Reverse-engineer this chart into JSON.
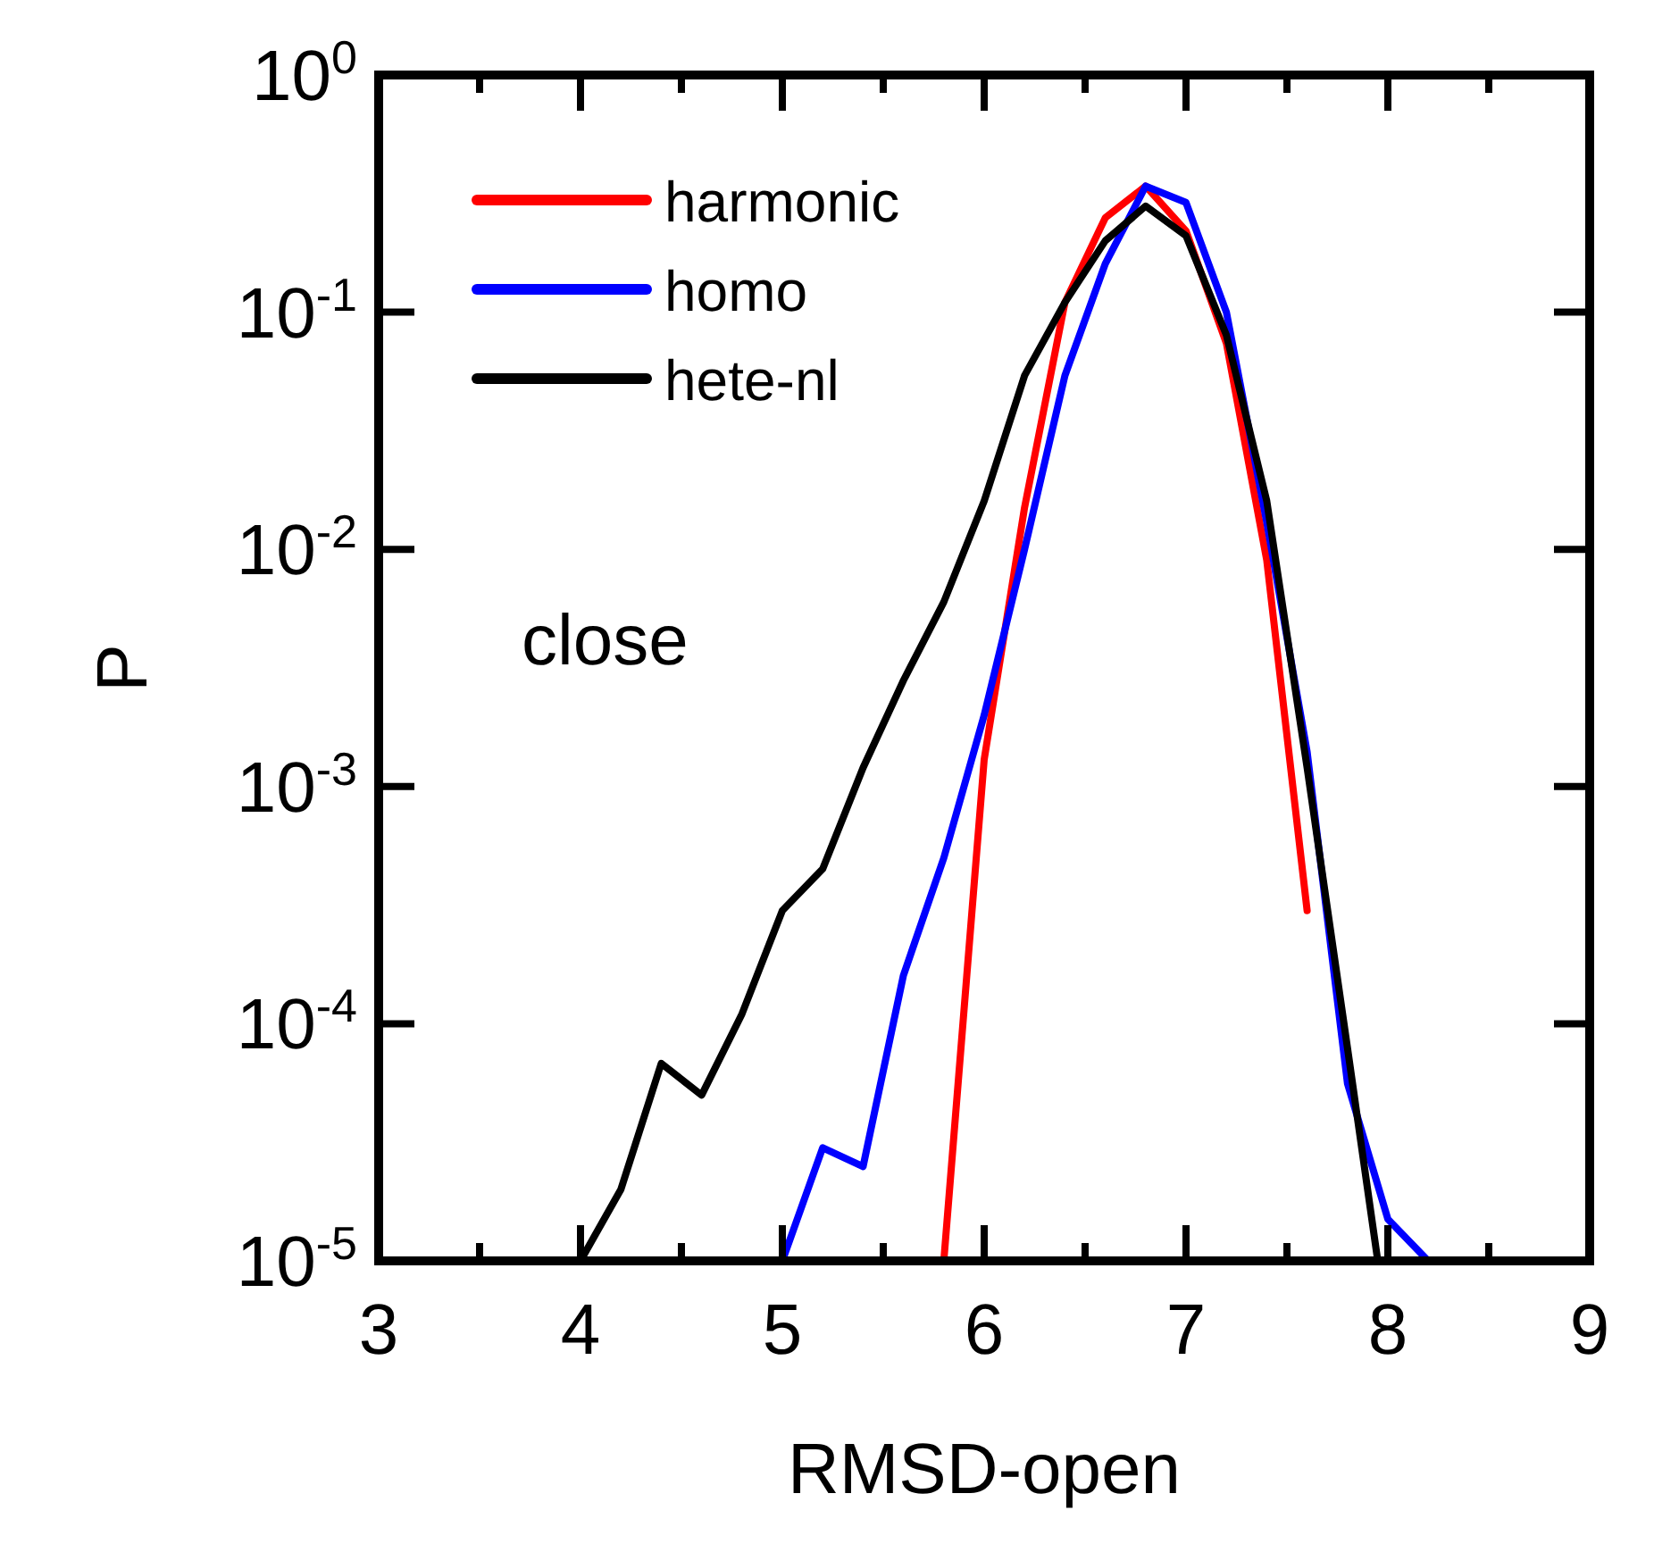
{
  "chart_data": {
    "type": "line",
    "xlabel": "RMSD-open",
    "ylabel": "P",
    "log": "y",
    "xlim": [
      3,
      9
    ],
    "xticks": [
      3,
      {
        "value": 3.5,
        "label": null
      },
      4,
      {
        "value": 4.5,
        "label": null
      },
      5,
      {
        "value": 5.5,
        "label": null
      },
      6,
      {
        "value": 6.5,
        "label": null
      },
      7,
      {
        "value": 7.5,
        "label": null
      },
      8,
      {
        "value": 8.5,
        "label": null
      },
      9
    ],
    "ylim": [
      1e-05,
      1
    ],
    "yticks": [
      {
        "value": 1,
        "label": "10$^{0}$"
      },
      {
        "value": 0.1,
        "label": "10$^{-1}$"
      },
      {
        "value": 0.01,
        "label": "10$^{-2}$"
      },
      {
        "value": 0.001,
        "label": "10$^{-3}$"
      },
      {
        "value": 0.0001,
        "label": "10$^{-4}$"
      },
      {
        "value": 1e-05,
        "label": "10$^{-5}$"
      }
    ],
    "legend": "top left",
    "grid": false,
    "marker": "none",
    "line_style": "solid",
    "annotations": [
      "close"
    ],
    "series": [
      {
        "name": "harmonic",
        "color": "#ff0000",
        "x": [
          5.8,
          6.0,
          6.2,
          6.4,
          6.6,
          6.8,
          7.0,
          7.2,
          7.4,
          7.6
        ],
        "values": [
          1e-05,
          0.0013,
          0.015,
          0.11,
          0.25,
          0.34,
          0.22,
          0.074,
          0.009,
          0.0003
        ]
      },
      {
        "name": "homo",
        "color": "#0000ff",
        "x": [
          5.0,
          5.2,
          5.4,
          5.6,
          5.8,
          6.0,
          6.2,
          6.4,
          6.6,
          6.8,
          7.0,
          7.2,
          7.4,
          7.6,
          7.8,
          8.0,
          8.2
        ],
        "values": [
          1e-05,
          3e-05,
          2.5e-05,
          0.00016,
          0.0005,
          0.002,
          0.01,
          0.054,
          0.16,
          0.34,
          0.29,
          0.1,
          0.013,
          0.0014,
          5.6e-05,
          1.5e-05,
          1e-05
        ]
      },
      {
        "name": "hete-nl",
        "color": "#000000",
        "x": [
          4.0,
          4.2,
          4.4,
          4.6,
          4.8,
          5.0,
          5.2,
          5.4,
          5.6,
          5.8,
          6.0,
          6.2,
          6.4,
          6.6,
          6.8,
          7.0,
          7.2,
          7.4,
          7.6,
          7.8,
          7.95
        ],
        "values": [
          1e-05,
          2e-05,
          6.8e-05,
          5e-05,
          0.00011,
          0.0003,
          0.00045,
          0.0012,
          0.0028,
          0.006,
          0.016,
          0.054,
          0.11,
          0.2,
          0.28,
          0.21,
          0.08,
          0.016,
          0.0012,
          7.9e-05,
          1e-05
        ]
      }
    ]
  }
}
